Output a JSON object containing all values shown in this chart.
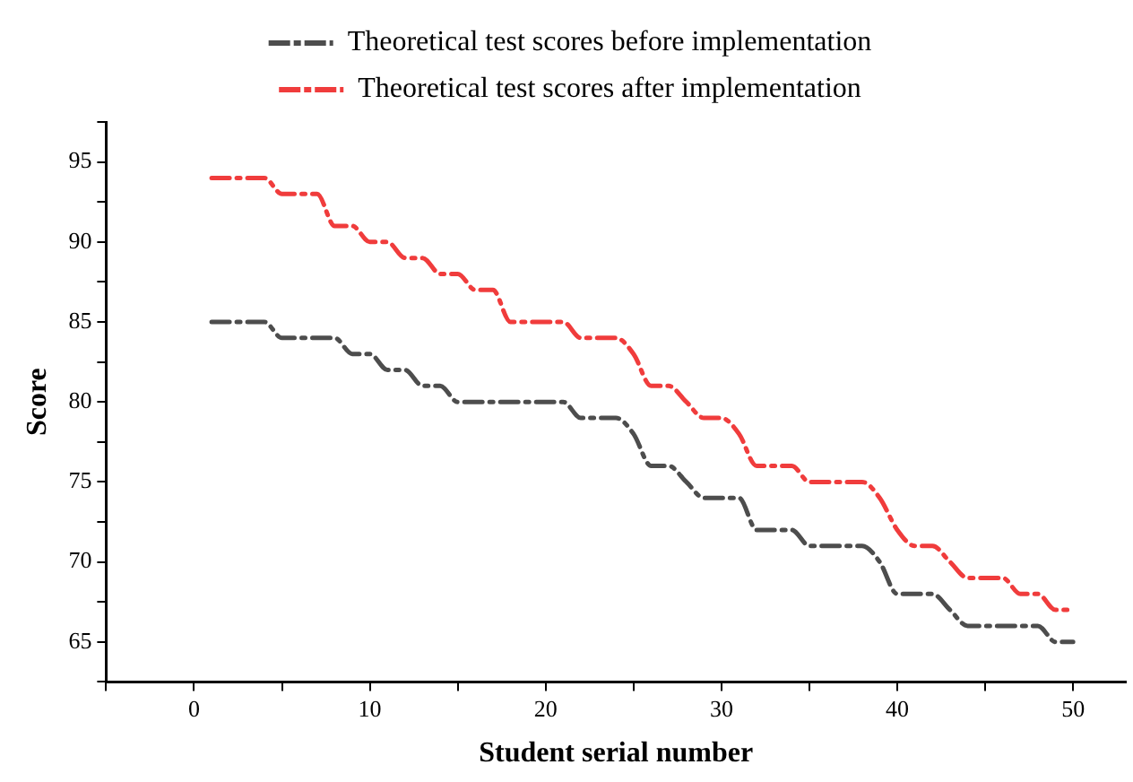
{
  "chart_data": {
    "type": "line",
    "xlabel": "Student serial number",
    "ylabel": "Score",
    "x": [
      1,
      2,
      3,
      4,
      5,
      6,
      7,
      8,
      9,
      10,
      11,
      12,
      13,
      14,
      15,
      16,
      17,
      18,
      19,
      20,
      21,
      22,
      23,
      24,
      25,
      26,
      27,
      28,
      29,
      30,
      31,
      32,
      33,
      34,
      35,
      36,
      37,
      38,
      39,
      40,
      41,
      42,
      43,
      44,
      45,
      46,
      47,
      48,
      49,
      50
    ],
    "series": [
      {
        "name": "Theoretical test scores before implementation",
        "color": "#4d4d4d",
        "values": [
          85,
          85,
          85,
          85,
          84,
          84,
          84,
          84,
          83,
          83,
          82,
          82,
          81,
          81,
          80,
          80,
          80,
          80,
          80,
          80,
          80,
          79,
          79,
          79,
          78,
          76,
          76,
          75,
          74,
          74,
          74,
          72,
          72,
          72,
          71,
          71,
          71,
          71,
          70,
          68,
          68,
          68,
          67,
          66,
          66,
          66,
          66,
          66,
          65,
          65
        ]
      },
      {
        "name": "Theoretical test scores after implementation",
        "color": "#f03c3c",
        "values": [
          94,
          94,
          94,
          94,
          93,
          93,
          93,
          91,
          91,
          90,
          90,
          89,
          89,
          88,
          88,
          87,
          87,
          85,
          85,
          85,
          85,
          84,
          84,
          84,
          83,
          81,
          81,
          80,
          79,
          79,
          78,
          76,
          76,
          76,
          75,
          75,
          75,
          75,
          74,
          72,
          71,
          71,
          70,
          69,
          69,
          69,
          68,
          68,
          67,
          67
        ]
      }
    ],
    "xlim": [
      -5,
      53
    ],
    "xticks": [
      {
        "value": -5,
        "label": null
      },
      0,
      {
        "value": 5,
        "label": null
      },
      10,
      {
        "value": 15,
        "label": null
      },
      20,
      {
        "value": 25,
        "label": null
      },
      30,
      {
        "value": 35,
        "label": null
      },
      40,
      {
        "value": 45,
        "label": null
      },
      50
    ],
    "ylim": [
      62.5,
      97.5
    ],
    "yticks": [
      {
        "value": 62.5,
        "label": null
      },
      65,
      {
        "value": 67.5,
        "label": null
      },
      70,
      {
        "value": 72.5,
        "label": null
      },
      75,
      {
        "value": 77.5,
        "label": null
      },
      80,
      {
        "value": 82.5,
        "label": null
      },
      85,
      {
        "value": 87.5,
        "label": null
      },
      90,
      {
        "value": 92.5,
        "label": null
      },
      95,
      {
        "value": 97.5,
        "label": null
      }
    ],
    "grid": false,
    "legend": "top",
    "marker": "none",
    "line_style": "dashed"
  }
}
